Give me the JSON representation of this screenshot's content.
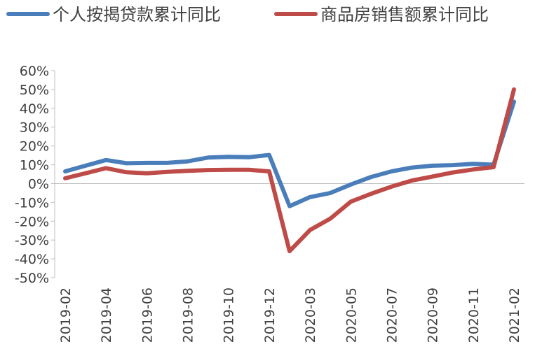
{
  "chart_data": {
    "type": "line",
    "title": "",
    "xlabel": "",
    "ylabel": "",
    "ylim": [
      -50,
      60
    ],
    "y_ticks": [
      "60%",
      "50%",
      "40%",
      "30%",
      "20%",
      "10%",
      "0%",
      "-10%",
      "-20%",
      "-30%",
      "-40%",
      "-50%"
    ],
    "x": [
      "2019-02",
      "2019-03",
      "2019-04",
      "2019-05",
      "2019-06",
      "2019-07",
      "2019-08",
      "2019-09",
      "2019-10",
      "2019-11",
      "2019-12",
      "2020-02",
      "2020-03",
      "2020-04",
      "2020-05",
      "2020-06",
      "2020-07",
      "2020-08",
      "2020-09",
      "2020-10",
      "2020-11",
      "2020-12",
      "2021-02"
    ],
    "x_tick_labels": [
      "2019-02",
      "2019-04",
      "2019-06",
      "2019-08",
      "2019-10",
      "2019-12",
      "2020-03",
      "2020-05",
      "2020-07",
      "2020-09",
      "2020-11",
      "2021-02"
    ],
    "series": [
      {
        "name": "个人按揭贷款累计同比",
        "color": "#4a7ebb",
        "values": [
          6.5,
          9.5,
          12.5,
          10.8,
          11.0,
          11.0,
          11.8,
          13.8,
          14.2,
          14.0,
          15.2,
          -12.0,
          -7.2,
          -5.0,
          -0.5,
          3.5,
          6.5,
          8.5,
          9.5,
          9.8,
          10.5,
          10.0,
          43.5
        ]
      },
      {
        "name": "商品房销售额累计同比",
        "color": "#be4b48",
        "values": [
          2.8,
          5.5,
          8.2,
          6.0,
          5.5,
          6.2,
          6.8,
          7.2,
          7.3,
          7.3,
          6.5,
          -35.9,
          -24.7,
          -18.6,
          -9.6,
          -5.4,
          -1.6,
          1.6,
          3.7,
          5.9,
          7.5,
          8.7,
          50.0
        ]
      }
    ],
    "legend_position": "top"
  }
}
